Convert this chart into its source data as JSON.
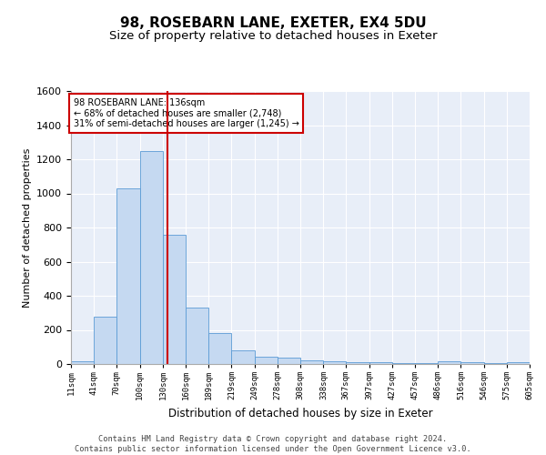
{
  "title1": "98, ROSEBARN LANE, EXETER, EX4 5DU",
  "title2": "Size of property relative to detached houses in Exeter",
  "xlabel": "Distribution of detached houses by size in Exeter",
  "ylabel": "Number of detached properties",
  "bin_edges": [
    11,
    41,
    70,
    100,
    130,
    160,
    189,
    219,
    249,
    278,
    308,
    338,
    367,
    397,
    427,
    457,
    486,
    516,
    546,
    575,
    605
  ],
  "bar_heights": [
    15,
    280,
    1030,
    1250,
    760,
    330,
    180,
    80,
    45,
    35,
    20,
    15,
    10,
    10,
    5,
    5,
    15,
    10,
    5,
    10
  ],
  "bar_color": "#c5d9f1",
  "bar_edgecolor": "#5b9bd5",
  "vline_x": 136,
  "vline_color": "#cc0000",
  "annotation_text": "98 ROSEBARN LANE: 136sqm\n← 68% of detached houses are smaller (2,748)\n31% of semi-detached houses are larger (1,245) →",
  "annotation_box_edgecolor": "#cc0000",
  "annotation_box_facecolor": "#ffffff",
  "ylim": [
    0,
    1600
  ],
  "yticks": [
    0,
    200,
    400,
    600,
    800,
    1000,
    1200,
    1400,
    1600
  ],
  "xtick_labels": [
    "11sqm",
    "41sqm",
    "70sqm",
    "100sqm",
    "130sqm",
    "160sqm",
    "189sqm",
    "219sqm",
    "249sqm",
    "278sqm",
    "308sqm",
    "338sqm",
    "367sqm",
    "397sqm",
    "427sqm",
    "457sqm",
    "486sqm",
    "516sqm",
    "546sqm",
    "575sqm",
    "605sqm"
  ],
  "footer_text": "Contains HM Land Registry data © Crown copyright and database right 2024.\nContains public sector information licensed under the Open Government Licence v3.0.",
  "bg_color": "#e8eef8",
  "grid_color": "#ffffff",
  "title1_fontsize": 11,
  "title2_fontsize": 9.5
}
